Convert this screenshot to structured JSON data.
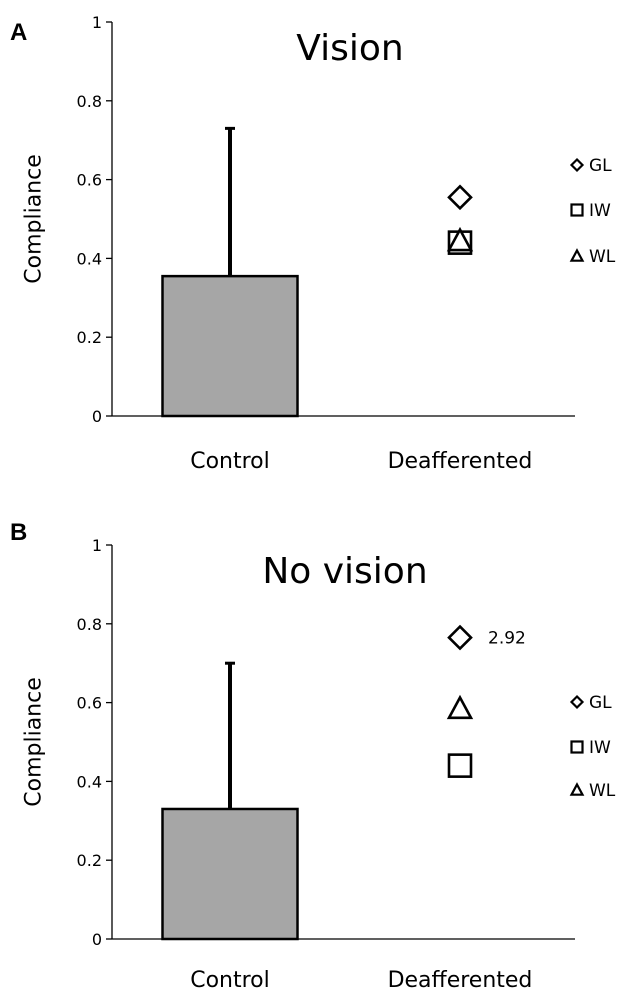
{
  "chart_data": [
    {
      "type": "bar",
      "panel_label": "A",
      "title": "Vision",
      "ylabel": "Compliance",
      "ylim": [
        0,
        1
      ],
      "yticks": [
        "0",
        "0.2",
        "0.4",
        "0.6",
        "0.8",
        "1"
      ],
      "categories": [
        "Control",
        "Deafferented"
      ],
      "bar": {
        "category": "Control",
        "value": 0.355,
        "error_upper": 0.73,
        "color": "#a6a6a6"
      },
      "points": [
        {
          "name": "GL",
          "marker": "diamond",
          "value": 0.555
        },
        {
          "name": "IW",
          "marker": "square",
          "value": 0.44
        },
        {
          "name": "WL",
          "marker": "triangle",
          "value": 0.445
        }
      ],
      "legend": [
        {
          "marker": "diamond",
          "label": "GL"
        },
        {
          "marker": "square",
          "label": "IW"
        },
        {
          "marker": "triangle",
          "label": "WL"
        }
      ],
      "annotations": []
    },
    {
      "type": "bar",
      "panel_label": "B",
      "title": "No vision",
      "ylabel": "Compliance",
      "ylim": [
        0,
        1
      ],
      "yticks": [
        "0",
        "0.2",
        "0.4",
        "0.6",
        "0.8",
        "1"
      ],
      "categories": [
        "Control",
        "Deafferented"
      ],
      "bar": {
        "category": "Control",
        "value": 0.33,
        "error_upper": 0.7,
        "color": "#a6a6a6"
      },
      "points": [
        {
          "name": "GL",
          "marker": "diamond",
          "value": 0.765
        },
        {
          "name": "WL",
          "marker": "triangle",
          "value": 0.585
        },
        {
          "name": "IW",
          "marker": "square",
          "value": 0.44
        }
      ],
      "legend": [
        {
          "marker": "diamond",
          "label": "GL"
        },
        {
          "marker": "square",
          "label": "IW"
        },
        {
          "marker": "triangle",
          "label": "WL"
        }
      ],
      "annotations": [
        {
          "text": "2.92",
          "near": "GL"
        }
      ]
    }
  ]
}
